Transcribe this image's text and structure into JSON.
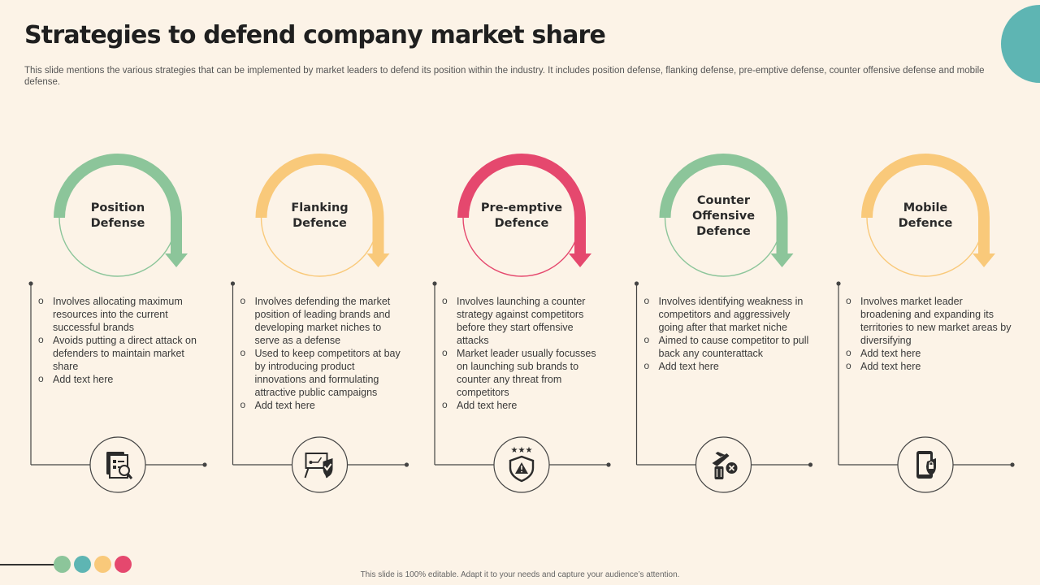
{
  "title": "Strategies to defend company market share",
  "subtitle": "This slide mentions the various strategies that can be implemented by market leaders to defend its position within the industry. It includes position defense, flanking defense, pre-emptive defense, counter offensive defense and mobile defense.",
  "footer": "This slide is 100% editable. Adapt it to your needs and capture your audience’s attention.",
  "colors": {
    "background": "#FCF3E7",
    "green": "#8CC59A",
    "yellow": "#F9C97A",
    "pink": "#E5486E",
    "teal": "#5EB5B3",
    "line": "#444444"
  },
  "strategies": [
    {
      "title": "Position\nDefense",
      "color": "#8CC59A",
      "icon": "report-chart-icon",
      "bullets": [
        "Involves allocating maximum resources into the current successful brands",
        "Avoids putting a direct attack on defenders to maintain market share",
        "Add text here"
      ]
    },
    {
      "title": "Flanking\nDefence",
      "color": "#F9C97A",
      "icon": "presentation-shield-icon",
      "bullets": [
        "Involves defending the market position of leading brands and developing market niches to serve as a defense",
        "Used to keep competitors at bay by introducing product innovations and formulating attractive public campaigns",
        "Add text here"
      ]
    },
    {
      "title": "Pre-emptive\nDefence",
      "color": "#E5486E",
      "icon": "warning-shield-icon",
      "bullets": [
        "Involves launching a counter strategy against competitors before they start offensive attacks",
        "Market leader usually focusses on launching sub brands to counter any threat from competitors",
        "Add text here"
      ]
    },
    {
      "title": "Counter\nOffensive\nDefence",
      "color": "#8CC59A",
      "icon": "plane-luggage-cancel-icon",
      "bullets": [
        "Involves identifying weakness in competitors and aggressively going after that market niche",
        "Aimed to cause competitor to pull back any counterattack",
        "Add text here"
      ]
    },
    {
      "title": "Mobile\nDefence",
      "color": "#F9C97A",
      "icon": "mobile-lock-icon",
      "bullets": [
        "Involves market leader broadening and expanding its territories to new market areas by diversifying",
        "Add text here",
        "Add text here"
      ]
    }
  ],
  "footer_dots": [
    "#8CC59A",
    "#5EB5B3",
    "#F9C97A",
    "#E5486E"
  ]
}
